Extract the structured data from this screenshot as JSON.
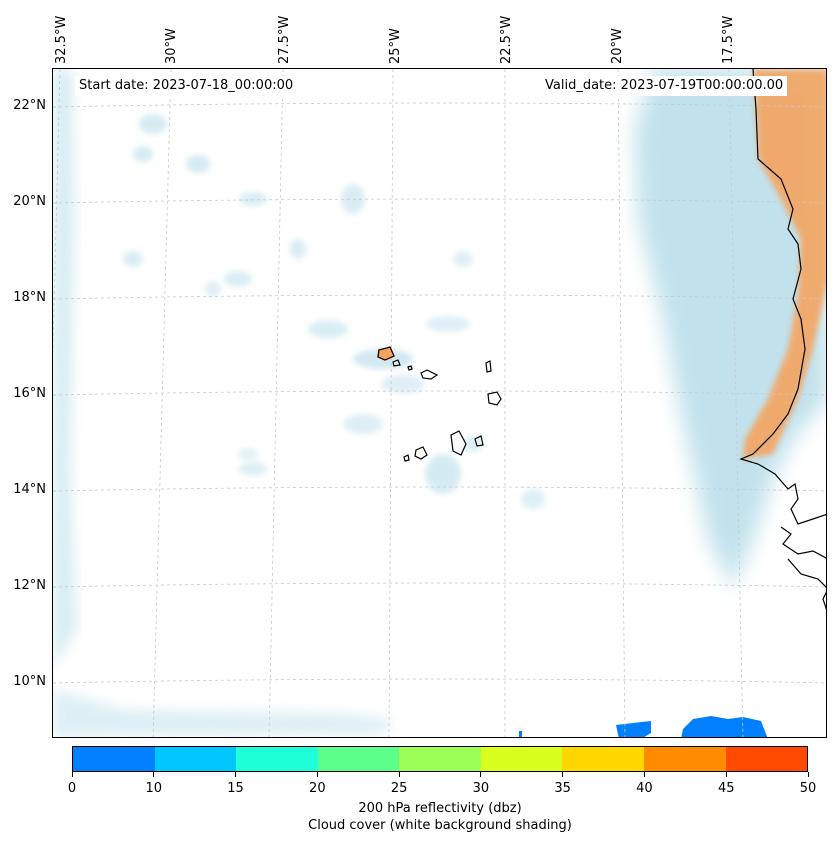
{
  "map": {
    "start_date": "Start date: 2023-07-18_00:00:00",
    "valid_date": "Valid_date: 2023-07-19T00:00:00.00",
    "lat_labels": [
      "22°N",
      "20°N",
      "18°N",
      "16°N",
      "14°N",
      "12°N",
      "10°N"
    ],
    "lon_labels": [
      "32.5°W",
      "30°W",
      "27.5°W",
      "25°W",
      "22.5°W",
      "20°W",
      "17.5°W"
    ],
    "colors": {
      "cloud_shading": "#add8e6",
      "land_warm": "#f4a460",
      "coastline": "#000000",
      "gridline": "#c8c8c8"
    }
  },
  "colorbar": {
    "ticks": [
      "0",
      "10",
      "15",
      "20",
      "25",
      "30",
      "35",
      "40",
      "45",
      "50"
    ],
    "colors": [
      "#0080ff",
      "#00c8ff",
      "#1effd8",
      "#5bff8a",
      "#9bff55",
      "#d8ff1e",
      "#ffd700",
      "#ff8c00",
      "#ff4a00"
    ],
    "title": "200 hPa reflectivity (dbz)",
    "subtitle": "Cloud cover (white background shading)"
  }
}
